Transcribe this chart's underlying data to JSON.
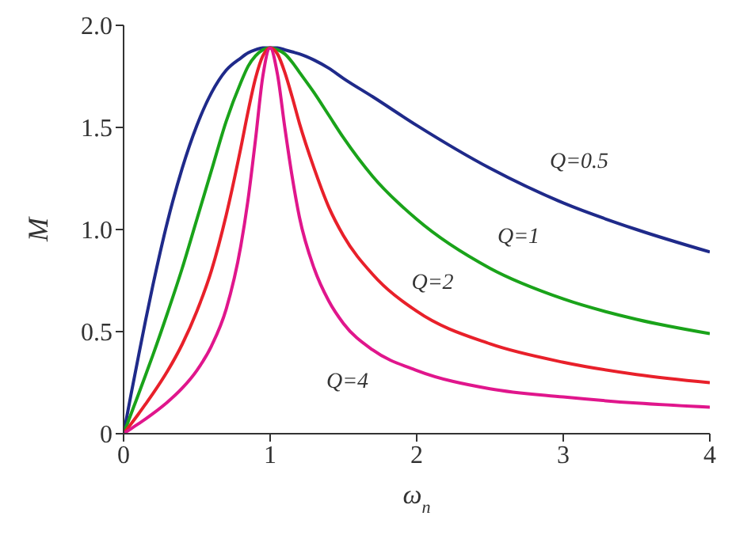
{
  "chart_data": {
    "type": "line",
    "xlabel": "ω$_{n}$",
    "ylabel": "M",
    "x": [
      0,
      0.05,
      0.1,
      0.15,
      0.2,
      0.3,
      0.4,
      0.5,
      0.6,
      0.7,
      0.8,
      0.85,
      0.9,
      0.95,
      1,
      1.05,
      1.1,
      1.15,
      1.2,
      1.3,
      1.4,
      1.5,
      1.7,
      2,
      2.5,
      3,
      3.5,
      4
    ],
    "series": [
      {
        "name": "Q=0.5",
        "color": "#1f2a8a",
        "values": [
          0,
          0.189,
          0.374,
          0.555,
          0.727,
          1.04,
          1.3,
          1.51,
          1.67,
          1.78,
          1.84,
          1.865,
          1.88,
          1.89,
          1.89,
          1.89,
          1.88,
          1.87,
          1.86,
          1.83,
          1.79,
          1.74,
          1.65,
          1.51,
          1.3,
          1.13,
          1.0,
          0.89
        ]
      },
      {
        "name": "Q=1",
        "color": "#1aa31a",
        "values": [
          0,
          0.095,
          0.19,
          0.287,
          0.385,
          0.592,
          0.81,
          1.05,
          1.29,
          1.53,
          1.72,
          1.8,
          1.85,
          1.88,
          1.89,
          1.88,
          1.86,
          1.82,
          1.77,
          1.67,
          1.56,
          1.45,
          1.26,
          1.05,
          0.81,
          0.66,
          0.56,
          0.49
        ]
      },
      {
        "name": "Q=2",
        "color": "#e8202a",
        "values": [
          0,
          0.047,
          0.095,
          0.145,
          0.196,
          0.307,
          0.438,
          0.6,
          0.8,
          1.07,
          1.4,
          1.58,
          1.74,
          1.85,
          1.89,
          1.86,
          1.77,
          1.65,
          1.52,
          1.3,
          1.11,
          0.97,
          0.78,
          0.6,
          0.44,
          0.35,
          0.29,
          0.25
        ]
      },
      {
        "name": "Q=4",
        "color": "#e0168c",
        "values": [
          0,
          0.024,
          0.048,
          0.072,
          0.098,
          0.155,
          0.223,
          0.31,
          0.43,
          0.61,
          0.92,
          1.15,
          1.44,
          1.75,
          1.89,
          1.76,
          1.5,
          1.26,
          1.06,
          0.81,
          0.65,
          0.54,
          0.41,
          0.31,
          0.22,
          0.18,
          0.15,
          0.13
        ]
      }
    ],
    "xlim": [
      0,
      4
    ],
    "xticks": [
      0,
      1,
      2,
      3,
      4
    ],
    "ylim": [
      0,
      2
    ],
    "yticks": [
      0,
      0.5,
      {
        "value": 1,
        "label": "1.0"
      },
      1.5,
      {
        "value": 2,
        "label": "2.0"
      }
    ],
    "grid": false,
    "marker": "none",
    "line_style": "solid"
  }
}
